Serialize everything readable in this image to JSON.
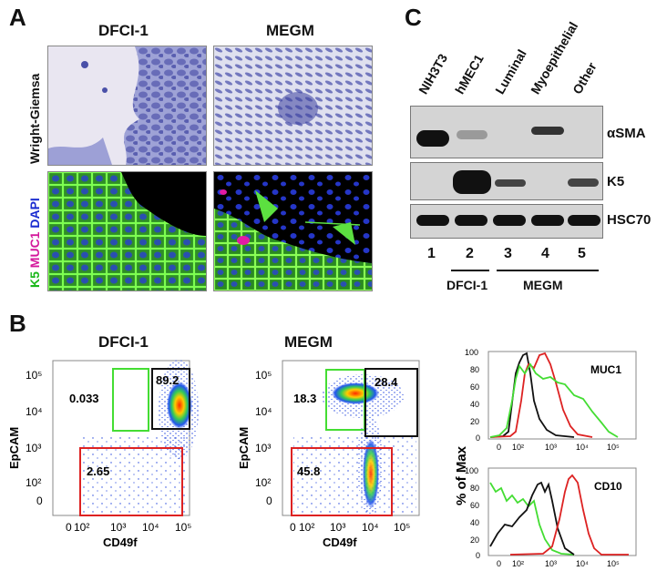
{
  "panelA": {
    "letter": "A",
    "col1": "DFCI-1",
    "col2": "MEGM",
    "row1_label": "Wright-Giemsa",
    "row2_label": {
      "k5": "K5",
      "muc1": "MUC1",
      "dapi": "DAPI"
    }
  },
  "panelB": {
    "letter": "B",
    "plot1": {
      "title": "DFCI-1",
      "gates": {
        "green": "0.033",
        "black": "89.2",
        "red": "2.65"
      }
    },
    "plot2": {
      "title": "MEGM",
      "gates": {
        "green": "18.3",
        "black": "28.4",
        "red": "45.8"
      }
    },
    "ylabel": "EpCAM",
    "xlabel": "CD49f",
    "y_ticks": [
      "10⁵",
      "10⁴",
      "10³",
      "10²",
      "0"
    ],
    "x_ticks": [
      "0",
      "10²",
      "10³",
      "10⁴",
      "10⁵"
    ],
    "hist_ylabel": "% of Max",
    "hist1_marker": "MUC1",
    "hist2_marker": "CD10",
    "hist_y_ticks": [
      "100",
      "80",
      "60",
      "40",
      "20",
      "0"
    ],
    "hist_x_ticks": [
      "0",
      "10²",
      "10³",
      "10⁴",
      "10⁵"
    ]
  },
  "panelC": {
    "letter": "C",
    "lanes": [
      "NIH3T3",
      "hMEC1",
      "Luminal",
      "Myoepithelial",
      "Other"
    ],
    "lane_numbers": [
      "1",
      "2",
      "3",
      "4",
      "5"
    ],
    "blots": [
      "αSMA",
      "K5",
      "HSC70"
    ],
    "group1": "DFCI-1",
    "group2": "MEGM"
  },
  "colors": {
    "green": "#44dd33",
    "black": "#111111",
    "red": "#dd2222"
  }
}
